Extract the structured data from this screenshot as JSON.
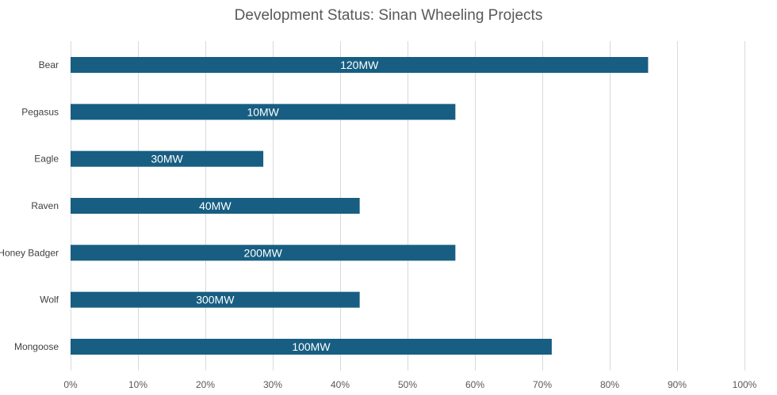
{
  "chart_data": {
    "type": "bar",
    "orientation": "horizontal",
    "title": "Development Status: Sinan Wheeling Projects",
    "xlabel": "",
    "ylabel": "",
    "xlim": [
      0,
      100
    ],
    "x_tick_step": 10,
    "x_tick_suffix": "%",
    "grid": true,
    "legend": "none",
    "bar_color": "#175e82",
    "categories": [
      "Bear",
      "Pegasus",
      "Eagle",
      "Raven",
      "Honey Badger",
      "Wolf",
      "Mongoose"
    ],
    "values": [
      85.7,
      57.1,
      28.6,
      42.9,
      57.1,
      42.9,
      71.4
    ],
    "data_labels": [
      "120MW",
      "10MW",
      "30MW",
      "40MW",
      "200MW",
      "300MW",
      "100MW"
    ]
  }
}
